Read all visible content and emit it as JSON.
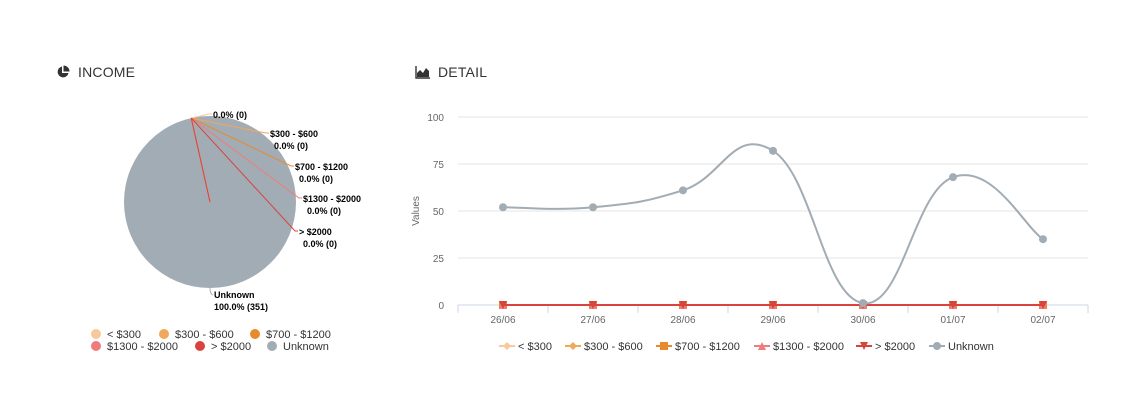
{
  "income_panel": {
    "title": "INCOME",
    "icon": "pie-chart-icon"
  },
  "detail_panel": {
    "title": "DETAIL",
    "icon": "area-chart-icon"
  },
  "chart_data": [
    {
      "type": "pie",
      "title": "INCOME",
      "slices": [
        {
          "name": "< $300",
          "value": 0,
          "label": "0.0% (0)",
          "color": "#f9c89b"
        },
        {
          "name": "$300 - $600",
          "value": 0,
          "label": "0.0% (0)",
          "color": "#f0a85a"
        },
        {
          "name": "$700 - $1200",
          "value": 0,
          "label": "0.0% (0)",
          "color": "#e8892e"
        },
        {
          "name": "$1300 - $2000",
          "value": 0,
          "label": "0.0% (0)",
          "color": "#f07b7b"
        },
        {
          "name": "> $2000",
          "value": 0,
          "label": "0.0% (0)",
          "color": "#d9423f"
        },
        {
          "name": "Unknown",
          "value": 351,
          "label": "100.0% (351)",
          "color": "#a2acb4"
        }
      ],
      "legend_position": "bottom"
    },
    {
      "type": "line",
      "title": "DETAIL",
      "ylabel": "Values",
      "categories": [
        "26/06",
        "27/06",
        "28/06",
        "29/06",
        "30/06",
        "01/07",
        "02/07"
      ],
      "yticks": [
        0,
        25,
        50,
        75,
        100
      ],
      "ylim": [
        0,
        100
      ],
      "grid": true,
      "legend_position": "bottom",
      "series": [
        {
          "name": "< $300",
          "color": "#f9c89b",
          "marker": "diamond",
          "values": [
            0,
            0,
            0,
            0,
            0,
            0,
            0
          ]
        },
        {
          "name": "$300 - $600",
          "color": "#f0a85a",
          "marker": "diamond",
          "values": [
            0,
            0,
            0,
            0,
            0,
            0,
            0
          ]
        },
        {
          "name": "$700 - $1200",
          "color": "#e8892e",
          "marker": "square",
          "values": [
            0,
            0,
            0,
            0,
            0,
            0,
            0
          ]
        },
        {
          "name": "$1300 - $2000",
          "color": "#f07b7b",
          "marker": "triangle",
          "values": [
            0,
            0,
            0,
            0,
            0,
            0,
            0
          ]
        },
        {
          "name": "> $2000",
          "color": "#d9423f",
          "marker": "triangle-down",
          "values": [
            0,
            0,
            0,
            0,
            0,
            0,
            0
          ]
        },
        {
          "name": "Unknown",
          "color": "#a2acb4",
          "marker": "circle",
          "values": [
            52,
            52,
            61,
            82,
            1,
            68,
            35
          ]
        }
      ]
    }
  ]
}
